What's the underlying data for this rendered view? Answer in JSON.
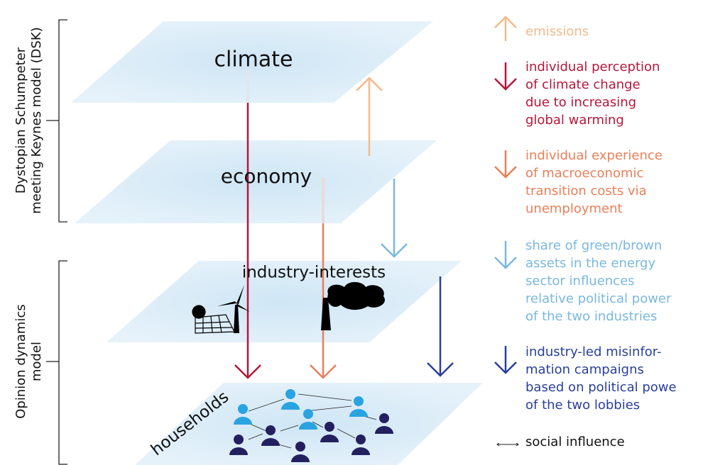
{
  "layers": [
    {
      "label": "climate"
    },
    {
      "label": "economy"
    },
    {
      "label": "industry-interests"
    },
    {
      "label": "households"
    }
  ],
  "brackets": [
    {
      "lines": [
        "Dystopian Schumpeter",
        "meeting Keynes model (DSK)"
      ]
    },
    {
      "lines": [
        "Opinion dynamics",
        "model"
      ]
    }
  ],
  "legend": [
    {
      "lines": [
        "emissions"
      ]
    },
    {
      "lines": [
        "individual perception",
        "of climate change",
        "due to increasing",
        "global warming"
      ]
    },
    {
      "lines": [
        "individual experience",
        "of macroeconomic",
        "transition costs via",
        "unemployment"
      ]
    },
    {
      "lines": [
        "share of green/brown",
        "assets in the energy",
        "sector influences",
        "relative political power",
        "of the two industries"
      ]
    },
    {
      "lines": [
        "industry-led misinfor-",
        "mation campaigns",
        "based on political powe",
        "of the two lobbies"
      ]
    },
    {
      "lines": [
        "social influence"
      ]
    }
  ]
}
